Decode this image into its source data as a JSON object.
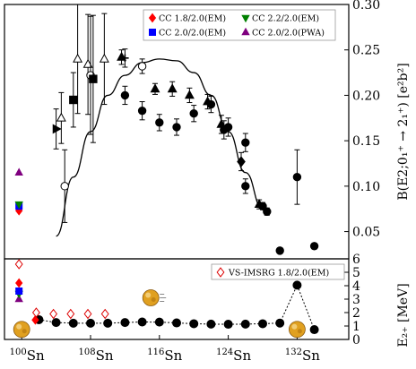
{
  "colors": {
    "expt": "#000000",
    "cc18": "#ff0000",
    "cc20": "#0000ff",
    "cc22": "#008000",
    "pwa": "#7f007f",
    "vs": "#dd0000",
    "theory_curve": "#000000",
    "nucleus": "#e0a020"
  },
  "chart_data": [
    {
      "type": "scatter",
      "panel": "top",
      "ylabel": "B(E2;0₁⁺ → 2₁⁺) [e²b²]",
      "xlim": [
        98,
        138
      ],
      "ylim": [
        0.02,
        0.3
      ],
      "yticks": [
        "0.05",
        "0.10",
        "0.15",
        "0.20",
        "0.25",
        "0.30"
      ],
      "ytick_values": [
        0.05,
        0.1,
        0.15,
        0.2,
        0.25,
        0.3
      ],
      "legend": {
        "placement": "top",
        "entries": [
          {
            "label": "CC 1.8/2.0(EM)",
            "marker": "diamond",
            "color_key": "cc18"
          },
          {
            "label": "CC 2.2/2.0(EM)",
            "marker": "triangle-down",
            "color_key": "cc22"
          },
          {
            "label": "CC 2.0/2.0(EM)",
            "marker": "square",
            "color_key": "cc20"
          },
          {
            "label": "CC 2.0/2.0(PWA)",
            "marker": "triangle-up",
            "color_key": "pwa"
          }
        ]
      },
      "calc_100sn": [
        {
          "name": "CC 1.8/2.0(EM)",
          "x": 100,
          "y": 0.073,
          "marker": "diamond",
          "color_key": "cc18"
        },
        {
          "name": "CC 2.0/2.0(EM)",
          "x": 100,
          "y": 0.078,
          "marker": "square",
          "color_key": "cc20"
        },
        {
          "name": "CC 2.2/2.0(EM)",
          "x": 100,
          "y": 0.08,
          "marker": "triangle-down",
          "color_key": "cc22"
        },
        {
          "name": "CC 2.0/2.0(PWA)",
          "x": 100,
          "y": 0.115,
          "marker": "triangle-up",
          "color_key": "pwa"
        }
      ],
      "experiment": [
        {
          "x": 104,
          "y": 0.163,
          "err": 0.022,
          "marker": "triangle-right",
          "filled": true
        },
        {
          "x": 104.6,
          "y": 0.175,
          "err": 0.028,
          "marker": "triangle-up",
          "filled": false
        },
        {
          "x": 105,
          "y": 0.1,
          "err": 0.04,
          "marker": "circle",
          "filled": false
        },
        {
          "x": 106,
          "y": 0.195,
          "err": 0.03,
          "marker": "square",
          "filled": true
        },
        {
          "x": 106.5,
          "y": 0.24,
          "err": 0.06,
          "marker": "triangle-up",
          "filled": false
        },
        {
          "x": 107.7,
          "y": 0.234,
          "err": 0.055,
          "marker": "triangle-up",
          "filled": false
        },
        {
          "x": 108,
          "y": 0.222,
          "err": 0.065,
          "marker": "circle",
          "filled": false
        },
        {
          "x": 108.3,
          "y": 0.218,
          "err": 0.07,
          "marker": "square",
          "filled": true
        },
        {
          "x": 109.6,
          "y": 0.24,
          "err": 0.05,
          "marker": "triangle-up",
          "filled": false
        },
        {
          "x": 111.6,
          "y": 0.242,
          "err": 0.008,
          "marker": "triangle-up",
          "filled": true
        },
        {
          "x": 112,
          "y": 0.241,
          "err": 0.01,
          "marker": "cross",
          "filled": true
        },
        {
          "x": 112,
          "y": 0.2,
          "err": 0.01,
          "marker": "circle",
          "filled": true
        },
        {
          "x": 114,
          "y": 0.232,
          "err": 0.008,
          "marker": "circle",
          "filled": false
        },
        {
          "x": 114,
          "y": 0.183,
          "err": 0.01,
          "marker": "circle",
          "filled": true
        },
        {
          "x": 115.5,
          "y": 0.207,
          "err": 0.006,
          "marker": "triangle-up",
          "filled": true
        },
        {
          "x": 116,
          "y": 0.17,
          "err": 0.009,
          "marker": "circle",
          "filled": true
        },
        {
          "x": 117.5,
          "y": 0.207,
          "err": 0.008,
          "marker": "triangle-up",
          "filled": true
        },
        {
          "x": 118,
          "y": 0.165,
          "err": 0.009,
          "marker": "circle",
          "filled": true
        },
        {
          "x": 119.5,
          "y": 0.2,
          "err": 0.008,
          "marker": "triangle-up",
          "filled": true
        },
        {
          "x": 120,
          "y": 0.18,
          "err": 0.009,
          "marker": "circle",
          "filled": true
        },
        {
          "x": 121.6,
          "y": 0.193,
          "err": 0.008,
          "marker": "triangle-up",
          "filled": true
        },
        {
          "x": 122,
          "y": 0.19,
          "err": 0.009,
          "marker": "circle",
          "filled": true
        },
        {
          "x": 123.2,
          "y": 0.168,
          "err": 0.01,
          "marker": "triangle-up",
          "filled": true
        },
        {
          "x": 123.5,
          "y": 0.162,
          "err": 0.01,
          "marker": "circle",
          "filled": true
        },
        {
          "x": 124,
          "y": 0.165,
          "err": 0.01,
          "marker": "circle",
          "filled": true
        },
        {
          "x": 125.5,
          "y": 0.127,
          "err": 0.01,
          "marker": "diamond",
          "filled": true
        },
        {
          "x": 126,
          "y": 0.148,
          "err": 0.01,
          "marker": "circle",
          "filled": true
        },
        {
          "x": 126,
          "y": 0.1,
          "err": 0.008,
          "marker": "circle",
          "filled": true
        },
        {
          "x": 127.6,
          "y": 0.08,
          "err": 0.005,
          "marker": "triangle-up",
          "filled": true
        },
        {
          "x": 128,
          "y": 0.078,
          "err": 0.004,
          "marker": "circle",
          "filled": true
        },
        {
          "x": 128.5,
          "y": 0.072,
          "err": 0.004,
          "marker": "circle",
          "filled": true
        },
        {
          "x": 130,
          "y": 0.029,
          "err": 0.003,
          "marker": "circle",
          "filled": true
        },
        {
          "x": 132,
          "y": 0.11,
          "err": 0.03,
          "marker": "circle",
          "filled": true
        },
        {
          "x": 134,
          "y": 0.034,
          "err": 0.003,
          "marker": "circle",
          "filled": true
        }
      ],
      "theory_curve": {
        "x": [
          104,
          106,
          108,
          110,
          112,
          114,
          116,
          118,
          120,
          122,
          124,
          126,
          128
        ],
        "y": [
          0.045,
          0.11,
          0.16,
          0.2,
          0.222,
          0.236,
          0.24,
          0.238,
          0.225,
          0.2,
          0.16,
          0.115,
          0.075
        ]
      }
    },
    {
      "type": "scatter",
      "panel": "bottom",
      "ylabel": "E₂₊ [MeV]",
      "xlim": [
        98,
        138
      ],
      "ylim": [
        0,
        6
      ],
      "yticks": [
        "0",
        "1",
        "2",
        "3",
        "4",
        "5",
        "6"
      ],
      "ytick_values": [
        0,
        1,
        2,
        3,
        4,
        5,
        6
      ],
      "xticks": [
        {
          "value": 100,
          "mass": "100",
          "sym": "Sn"
        },
        {
          "value": 108,
          "mass": "108",
          "sym": "Sn"
        },
        {
          "value": 116,
          "mass": "116",
          "sym": "Sn"
        },
        {
          "value": 124,
          "mass": "124",
          "sym": "Sn"
        },
        {
          "value": 132,
          "mass": "132",
          "sym": "Sn"
        }
      ],
      "legend": {
        "placement": "top-right",
        "entries": [
          {
            "label": "VS-IMSRG 1.8/2.0(EM)",
            "marker": "diamond-open",
            "color_key": "vs"
          }
        ]
      },
      "calc_100sn": [
        {
          "name": "CC 2.0/2.0(PWA)",
          "x": 100,
          "y": 3.0,
          "marker": "triangle-up",
          "color_key": "pwa"
        },
        {
          "name": "CC 2.2/2.0(EM)",
          "x": 100,
          "y": 3.4,
          "marker": "triangle-down",
          "color_key": "cc22"
        },
        {
          "name": "CC 2.0/2.0(EM)",
          "x": 100,
          "y": 3.6,
          "marker": "square",
          "color_key": "cc20"
        },
        {
          "name": "CC 1.8/2.0(EM)",
          "x": 100,
          "y": 4.2,
          "marker": "diamond",
          "color_key": "cc18"
        }
      ],
      "vs_imsrg": {
        "x": [
          100,
          102,
          104,
          106,
          108,
          110
        ],
        "y": [
          5.6,
          2.0,
          1.9,
          1.9,
          1.9,
          1.9
        ]
      },
      "experiment_red_102": {
        "x": 102,
        "y": 1.45
      },
      "experiment": {
        "x": [
          102,
          104,
          106,
          108,
          110,
          112,
          114,
          116,
          118,
          120,
          122,
          124,
          126,
          128,
          130,
          132,
          134
        ],
        "y": [
          1.47,
          1.26,
          1.21,
          1.21,
          1.21,
          1.26,
          1.3,
          1.29,
          1.23,
          1.17,
          1.14,
          1.13,
          1.14,
          1.17,
          1.22,
          4.04,
          0.73
        ]
      },
      "nuclei_x": [
        100,
        115,
        132
      ]
    }
  ]
}
